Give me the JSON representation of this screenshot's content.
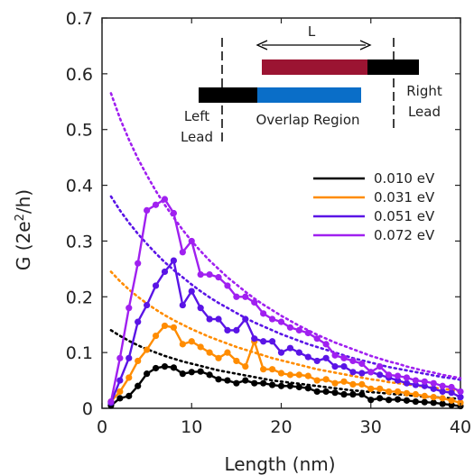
{
  "chart_data": {
    "type": "line",
    "title": "",
    "xlabel": "Length (nm)",
    "ylabel": "G (2e²/h)",
    "xlim": [
      0,
      40
    ],
    "ylim": [
      0,
      0.7
    ],
    "xticks": [
      0,
      10,
      20,
      30,
      40
    ],
    "yticks": [
      0,
      0.1,
      0.2,
      0.3,
      0.4,
      0.5,
      0.6,
      0.7
    ],
    "grid": false,
    "legend_position": "right",
    "x": [
      1,
      2,
      3,
      4,
      5,
      6,
      7,
      8,
      9,
      10,
      11,
      12,
      13,
      14,
      15,
      16,
      17,
      18,
      19,
      20,
      21,
      22,
      23,
      24,
      25,
      26,
      27,
      28,
      29,
      30,
      31,
      32,
      33,
      34,
      35,
      36,
      37,
      38,
      39,
      40
    ],
    "series": [
      {
        "name": "0.010 eV",
        "color": "#000000",
        "values": [
          0.005,
          0.018,
          0.022,
          0.04,
          0.062,
          0.072,
          0.075,
          0.073,
          0.062,
          0.065,
          0.066,
          0.06,
          0.052,
          0.05,
          0.045,
          0.05,
          0.045,
          0.045,
          0.042,
          0.04,
          0.04,
          0.038,
          0.036,
          0.03,
          0.03,
          0.028,
          0.025,
          0.025,
          0.025,
          0.015,
          0.018,
          0.015,
          0.016,
          0.014,
          0.012,
          0.011,
          0.01,
          0.008,
          0.006,
          0.004
        ],
        "fit": [
          0.14,
          0.13,
          0.121,
          0.113,
          0.106,
          0.1,
          0.094,
          0.089,
          0.084,
          0.08,
          0.076,
          0.072,
          0.068,
          0.065,
          0.062,
          0.059,
          0.056,
          0.053,
          0.05,
          0.048,
          0.046,
          0.044,
          0.042,
          0.04,
          0.038,
          0.036,
          0.034,
          0.032,
          0.031,
          0.029,
          0.028,
          0.026,
          0.025,
          0.024,
          0.022,
          0.021,
          0.02,
          0.019,
          0.018,
          0.017
        ]
      },
      {
        "name": "0.031 eV",
        "color": "#ff8c00",
        "values": [
          0.012,
          0.03,
          0.055,
          0.085,
          0.105,
          0.13,
          0.148,
          0.145,
          0.115,
          0.12,
          0.11,
          0.1,
          0.09,
          0.1,
          0.085,
          0.075,
          0.12,
          0.07,
          0.07,
          0.063,
          0.06,
          0.06,
          0.058,
          0.05,
          0.052,
          0.045,
          0.048,
          0.043,
          0.043,
          0.035,
          0.035,
          0.03,
          0.03,
          0.027,
          0.025,
          0.022,
          0.02,
          0.018,
          0.014,
          0.01
        ],
        "fit": [
          0.245,
          0.228,
          0.213,
          0.2,
          0.188,
          0.177,
          0.167,
          0.158,
          0.15,
          0.142,
          0.135,
          0.128,
          0.122,
          0.116,
          0.11,
          0.105,
          0.1,
          0.095,
          0.09,
          0.086,
          0.082,
          0.078,
          0.074,
          0.07,
          0.067,
          0.064,
          0.061,
          0.058,
          0.055,
          0.052,
          0.05,
          0.047,
          0.045,
          0.043,
          0.041,
          0.039,
          0.037,
          0.035,
          0.033,
          0.031
        ]
      },
      {
        "name": "0.051 eV",
        "color": "#5a14e6",
        "values": [
          0.01,
          0.05,
          0.09,
          0.155,
          0.185,
          0.22,
          0.245,
          0.265,
          0.185,
          0.21,
          0.18,
          0.16,
          0.16,
          0.14,
          0.14,
          0.16,
          0.125,
          0.12,
          0.12,
          0.1,
          0.108,
          0.1,
          0.092,
          0.085,
          0.09,
          0.075,
          0.075,
          0.065,
          0.063,
          0.065,
          0.06,
          0.055,
          0.05,
          0.045,
          0.042,
          0.04,
          0.035,
          0.03,
          0.028,
          0.02
        ],
        "fit": [
          0.38,
          0.355,
          0.333,
          0.313,
          0.295,
          0.278,
          0.262,
          0.248,
          0.235,
          0.222,
          0.21,
          0.199,
          0.189,
          0.18,
          0.171,
          0.162,
          0.154,
          0.147,
          0.14,
          0.133,
          0.127,
          0.121,
          0.115,
          0.11,
          0.105,
          0.1,
          0.095,
          0.09,
          0.086,
          0.082,
          0.078,
          0.074,
          0.071,
          0.068,
          0.065,
          0.062,
          0.059,
          0.056,
          0.054,
          0.051
        ]
      },
      {
        "name": "0.072 eV",
        "color": "#a020f0",
        "values": [
          0.012,
          0.09,
          0.18,
          0.26,
          0.355,
          0.365,
          0.375,
          0.35,
          0.28,
          0.3,
          0.24,
          0.24,
          0.235,
          0.22,
          0.2,
          0.2,
          0.19,
          0.17,
          0.16,
          0.155,
          0.145,
          0.14,
          0.135,
          0.125,
          0.115,
          0.095,
          0.09,
          0.085,
          0.08,
          0.065,
          0.075,
          0.06,
          0.058,
          0.055,
          0.05,
          0.048,
          0.045,
          0.04,
          0.038,
          0.03
        ],
        "fit": [
          0.565,
          0.52,
          0.482,
          0.448,
          0.418,
          0.39,
          0.365,
          0.342,
          0.32,
          0.3,
          0.282,
          0.265,
          0.25,
          0.235,
          0.222,
          0.209,
          0.197,
          0.186,
          0.176,
          0.166,
          0.157,
          0.148,
          0.14,
          0.132,
          0.125,
          0.118,
          0.112,
          0.106,
          0.1,
          0.094,
          0.089,
          0.084,
          0.08,
          0.075,
          0.071,
          0.067,
          0.064,
          0.06,
          0.057,
          0.054
        ]
      }
    ],
    "inset": {
      "length_label": "L",
      "left_label_line1": "Left",
      "left_label_line2": "Lead",
      "right_label_line1": "Right",
      "right_label_line2": "Lead",
      "overlap_label": "Overlap Region",
      "top_bar_color": "#9b1432",
      "bottom_bar_color": "#0a6ec8",
      "lead_color": "#000000"
    }
  }
}
